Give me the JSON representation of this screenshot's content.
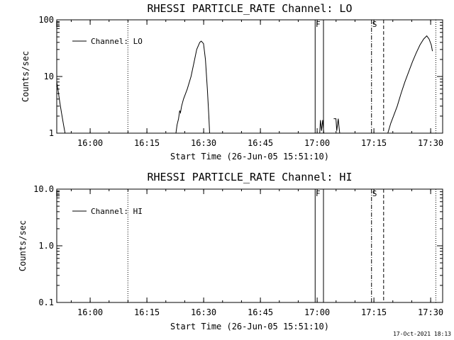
{
  "footer": {
    "timestamp": "17-Oct-2021 18:13"
  },
  "chart_data": [
    {
      "type": "line",
      "title": "RHESSI PARTICLE_RATE Channel: LO",
      "xlabel": "Start Time (26-Jun-05 15:51:10)",
      "ylabel": "Counts/sec",
      "yscale": "log",
      "ylim": [
        1,
        100
      ],
      "ytick_labels": [
        "1",
        "10",
        "100"
      ],
      "ytick_values": [
        1,
        10,
        100
      ],
      "xlim_minutes": [
        0,
        102.0
      ],
      "xtick_labels": [
        "16:00",
        "16:15",
        "16:30",
        "16:45",
        "17:00",
        "17:15",
        "17:30"
      ],
      "xtick_minutes": [
        8.83,
        23.83,
        38.83,
        53.83,
        68.83,
        83.83,
        98.83
      ],
      "series": [
        {
          "name": "Channel: LO",
          "segments": [
            [
              [
                0.0,
                8
              ],
              [
                0.3,
                6
              ],
              [
                0.8,
                3.5
              ],
              [
                1.3,
                2.2
              ],
              [
                1.8,
                1.4
              ],
              [
                2.2,
                1
              ]
            ],
            [
              [
                31.5,
                1
              ],
              [
                31.8,
                1.4
              ],
              [
                32.2,
                1.8
              ],
              [
                32.5,
                2.5
              ],
              [
                32.7,
                2.3
              ],
              [
                33.0,
                3
              ],
              [
                33.5,
                4
              ],
              [
                34.5,
                6
              ],
              [
                35.5,
                10
              ],
              [
                36.3,
                18
              ],
              [
                37.0,
                30
              ],
              [
                37.8,
                40
              ],
              [
                38.2,
                42
              ],
              [
                38.8,
                38
              ],
              [
                39.3,
                20
              ],
              [
                39.8,
                6
              ],
              [
                40.2,
                2
              ],
              [
                40.4,
                1
              ]
            ],
            [
              [
                69.5,
                1
              ],
              [
                69.7,
                1.7
              ],
              [
                70.0,
                1.1
              ],
              [
                70.3,
                1.7
              ],
              [
                70.6,
                1
              ]
            ],
            [
              [
                73.2,
                1.8
              ],
              [
                73.8,
                1.8
              ],
              [
                74.0,
                1.1
              ],
              [
                74.4,
                1.8
              ],
              [
                74.6,
                1.3
              ],
              [
                74.8,
                1
              ]
            ],
            [
              [
                87.5,
                1
              ],
              [
                88.3,
                1.5
              ],
              [
                89.0,
                2
              ],
              [
                90.0,
                3
              ],
              [
                91.0,
                5
              ],
              [
                92.0,
                8
              ],
              [
                93.0,
                12
              ],
              [
                94.0,
                18
              ],
              [
                95.0,
                26
              ],
              [
                96.0,
                36
              ],
              [
                97.0,
                46
              ],
              [
                97.8,
                52
              ],
              [
                98.4,
                46
              ],
              [
                99.0,
                36
              ],
              [
                99.3,
                28
              ]
            ]
          ]
        }
      ]
    },
    {
      "type": "line",
      "title": "RHESSI PARTICLE_RATE Channel: HI",
      "xlabel": "Start Time (26-Jun-05 15:51:10)",
      "ylabel": "Counts/sec",
      "yscale": "log",
      "ylim": [
        0.1,
        10
      ],
      "ytick_labels": [
        "0.1",
        "1.0",
        "10.0"
      ],
      "ytick_values": [
        0.1,
        1,
        10
      ],
      "xlim_minutes": [
        0,
        102.0
      ],
      "xtick_labels": [
        "16:00",
        "16:15",
        "16:30",
        "16:45",
        "17:00",
        "17:15",
        "17:30"
      ],
      "xtick_minutes": [
        8.83,
        23.83,
        38.83,
        53.83,
        68.83,
        83.83,
        98.83
      ],
      "series": [
        {
          "name": "Channel: HI",
          "segments": []
        }
      ]
    }
  ],
  "markers": [
    {
      "label": "E",
      "minute": 0.3,
      "style": "label"
    },
    {
      "label": "",
      "minute": 18.8,
      "style": "dotted"
    },
    {
      "label": "F",
      "minute": 68.3,
      "style": "solid"
    },
    {
      "label": "",
      "minute": 70.5,
      "style": "solid"
    },
    {
      "label": "",
      "minute": 83.2,
      "style": "dashdot"
    },
    {
      "label": "S",
      "minute": 84.0,
      "style": "label"
    },
    {
      "label": "",
      "minute": 86.4,
      "style": "dashed"
    },
    {
      "label": "",
      "minute": 100.2,
      "style": "dotted"
    }
  ]
}
